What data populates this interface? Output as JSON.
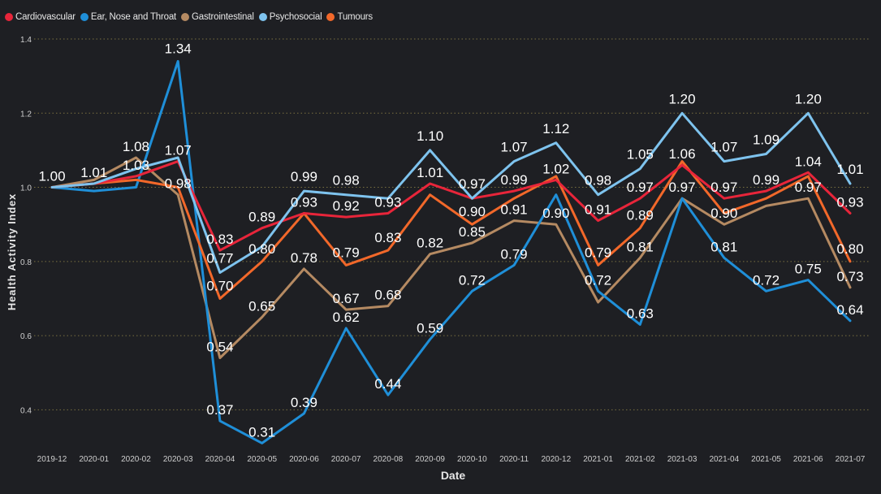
{
  "chart_data": {
    "type": "line",
    "title": "",
    "xlabel": "Date",
    "ylabel": "Health Activity Index",
    "ylim": [
      0.3,
      1.4
    ],
    "yticks": [
      0.4,
      0.6,
      0.8,
      1.0,
      1.2,
      1.4
    ],
    "ytick_labels": [
      "0.4",
      "0.6",
      "0.8",
      "1.0",
      "1.2",
      "1.4"
    ],
    "grid": "horizontal-dotted",
    "legend_position": "top-left",
    "categories": [
      "2019-12",
      "2020-01",
      "2020-02",
      "2020-03",
      "2020-04",
      "2020-05",
      "2020-06",
      "2020-07",
      "2020-08",
      "2020-09",
      "2020-10",
      "2020-11",
      "2020-12",
      "2021-01",
      "2021-02",
      "2021-03",
      "2021-04",
      "2021-05",
      "2021-06",
      "2021-07"
    ],
    "series": [
      {
        "name": "Cardiovascular",
        "color": "#e8253a",
        "values": [
          1.0,
          1.01,
          1.03,
          1.07,
          0.83,
          0.89,
          0.93,
          0.92,
          0.93,
          1.01,
          0.97,
          0.99,
          1.02,
          0.91,
          0.97,
          1.06,
          0.97,
          0.99,
          1.04,
          0.93
        ],
        "labels": [
          "1.00",
          "1.01",
          "1.03",
          "1.07",
          "0.83",
          "0.89",
          "0.93",
          "0.92",
          "0.93",
          "1.01",
          "",
          "0.99",
          "1.02",
          "0.91",
          "0.97",
          "1.06",
          "0.97",
          "0.99",
          "1.04",
          "0.93"
        ]
      },
      {
        "name": "Ear, Nose and Throat",
        "color": "#1f8fd8",
        "values": [
          1.0,
          0.99,
          1.0,
          1.34,
          0.37,
          0.31,
          0.39,
          0.62,
          0.44,
          0.59,
          0.72,
          0.79,
          0.98,
          0.72,
          0.63,
          0.97,
          0.81,
          0.72,
          0.75,
          0.64
        ],
        "labels": [
          "",
          "",
          "",
          "1.34",
          "0.37",
          "0.31",
          "0.39",
          "0.62",
          "0.44",
          "0.59",
          "0.72",
          "0.79",
          "",
          "0.72",
          "0.63",
          "0.97",
          "0.81",
          "0.72",
          "0.75",
          "0.64"
        ]
      },
      {
        "name": "Gastrointestinal",
        "color": "#b58a62",
        "values": [
          1.0,
          1.02,
          1.08,
          0.98,
          0.54,
          0.65,
          0.78,
          0.67,
          0.68,
          0.82,
          0.85,
          0.91,
          0.9,
          0.69,
          0.81,
          0.97,
          0.9,
          0.95,
          0.97,
          0.73
        ],
        "labels": [
          "",
          "",
          "1.08",
          "0.98",
          "0.54",
          "0.65",
          "0.78",
          "0.67",
          "0.68",
          "0.82",
          "0.85",
          "0.91",
          "0.90",
          "",
          "0.81",
          "",
          "0.90",
          "",
          "0.97",
          "0.73"
        ]
      },
      {
        "name": "Psychosocial",
        "color": "#7ec3ee",
        "values": [
          1.0,
          1.01,
          1.05,
          1.08,
          0.77,
          0.84,
          0.99,
          0.98,
          0.97,
          1.1,
          0.97,
          1.07,
          1.12,
          0.98,
          1.05,
          1.2,
          1.07,
          1.09,
          1.2,
          1.01
        ],
        "labels": [
          "",
          "",
          "",
          "",
          "0.77",
          "",
          "0.99",
          "0.98",
          "",
          "1.10",
          "0.97",
          "1.07",
          "1.12",
          "0.98",
          "1.05",
          "1.20",
          "1.07",
          "1.09",
          "1.20",
          "1.01"
        ]
      },
      {
        "name": "Tumours",
        "color": "#f2682a",
        "values": [
          1.0,
          1.01,
          1.02,
          1.0,
          0.7,
          0.8,
          0.93,
          0.79,
          0.83,
          0.98,
          0.9,
          0.97,
          1.03,
          0.79,
          0.89,
          1.07,
          0.93,
          0.97,
          1.03,
          0.8
        ],
        "labels": [
          "",
          "",
          "",
          "",
          "0.70",
          "0.80",
          "",
          "0.79",
          "0.83",
          "",
          "0.90",
          "",
          "",
          "0.79",
          "0.89",
          "",
          "",
          "",
          "",
          "0.80"
        ]
      }
    ]
  }
}
